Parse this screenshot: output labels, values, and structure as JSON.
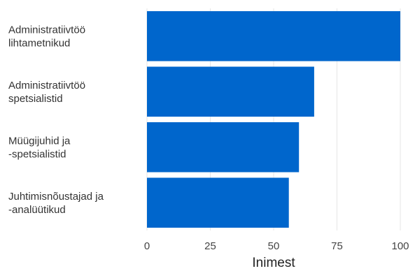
{
  "chart_data": {
    "type": "bar",
    "orientation": "horizontal",
    "categories": [
      [
        "Administratiivtöö",
        "lihtametnikud"
      ],
      [
        "Administratiivtöö",
        "spetsialistid"
      ],
      [
        "Müügijuhid ja",
        "-spetsialistid"
      ],
      [
        "Juhtimisnõustajad ja",
        "-analüütikud"
      ]
    ],
    "values": [
      100,
      66,
      60,
      56
    ],
    "xlabel": "Inimest",
    "ylabel": "",
    "xlim": [
      0,
      100
    ],
    "xticks": [
      0,
      25,
      50,
      75,
      100
    ],
    "grid": "vertical",
    "bar_color": "#0066cc",
    "legend": "none"
  }
}
